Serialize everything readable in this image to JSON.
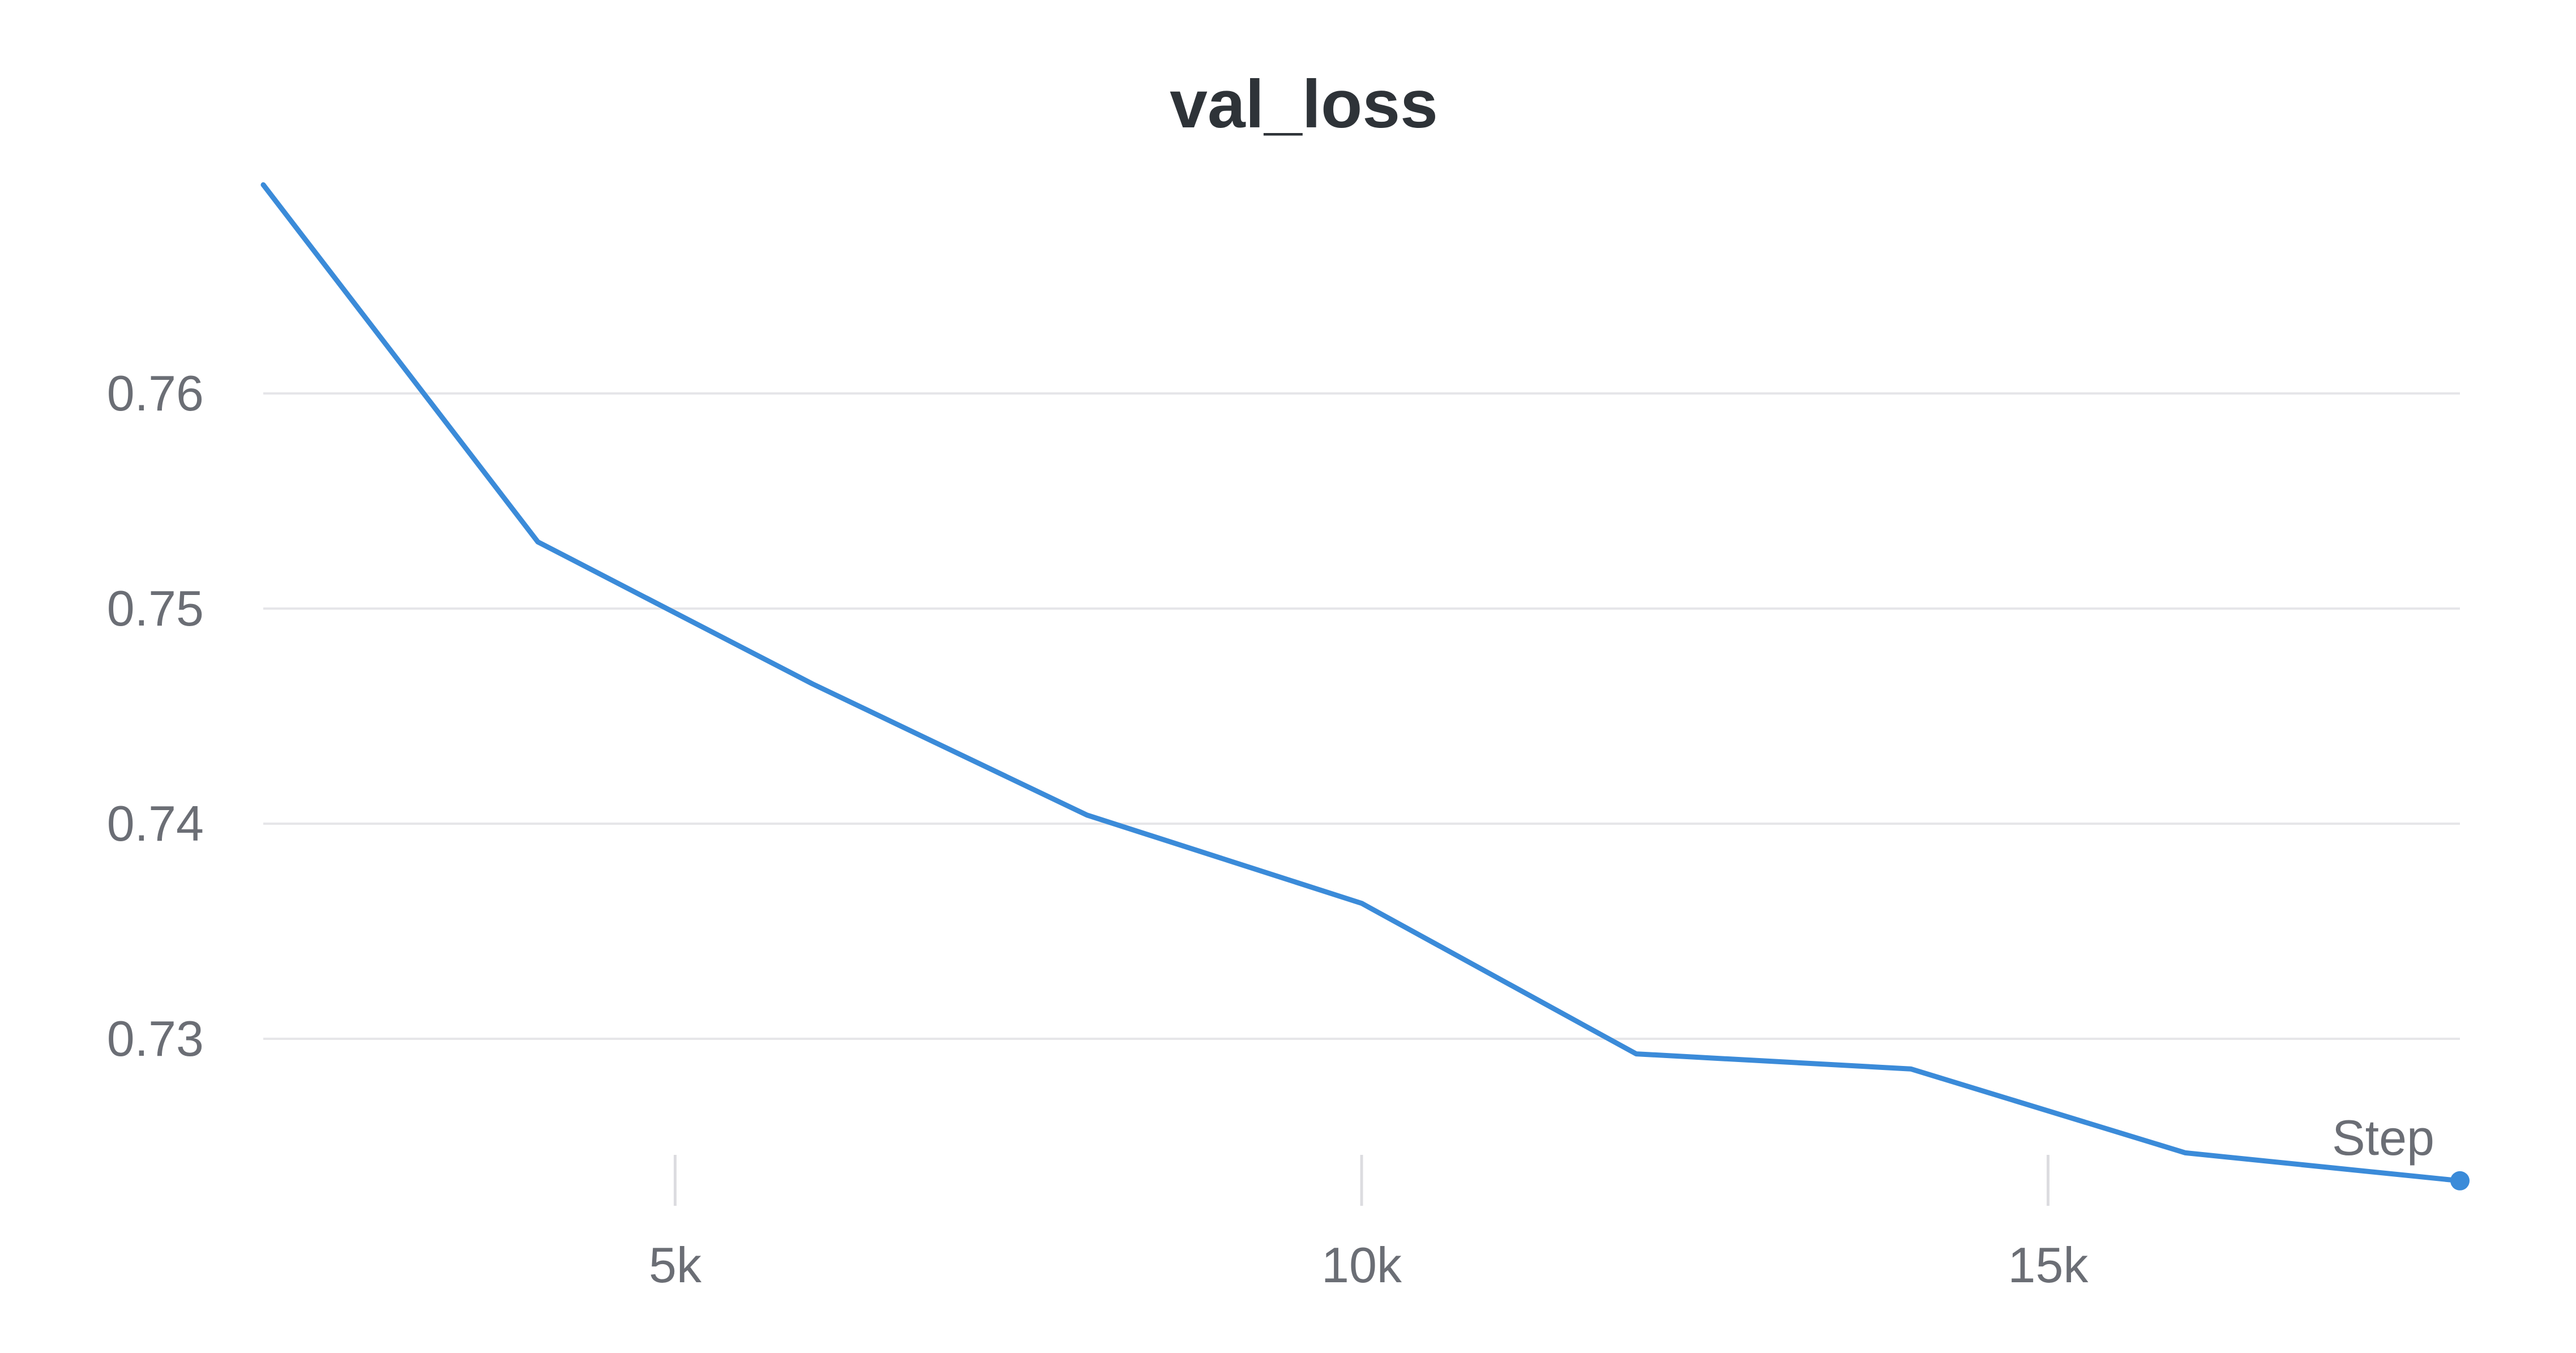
{
  "chart_data": {
    "type": "line",
    "title": "val_loss",
    "xlabel": "Step",
    "ylabel": "",
    "x_ticks": [
      {
        "value": 5000,
        "label": "5k"
      },
      {
        "value": 10000,
        "label": "10k"
      },
      {
        "value": 15000,
        "label": "15k"
      }
    ],
    "y_ticks": [
      {
        "value": 0.73,
        "label": "0.73"
      },
      {
        "value": 0.74,
        "label": "0.74"
      },
      {
        "value": 0.75,
        "label": "0.75"
      },
      {
        "value": 0.76,
        "label": "0.76"
      }
    ],
    "xlim": [
      2000,
      18000
    ],
    "ylim": [
      0.723,
      0.77
    ],
    "grid": true,
    "series": [
      {
        "color": "#3b8bd9",
        "x": [
          2000,
          4000,
          6000,
          8000,
          10000,
          12000,
          14000,
          16000,
          18000
        ],
        "y": [
          0.7697,
          0.7531,
          0.7465,
          0.7404,
          0.7363,
          0.7293,
          0.7286,
          0.7247,
          0.7234
        ]
      }
    ]
  }
}
